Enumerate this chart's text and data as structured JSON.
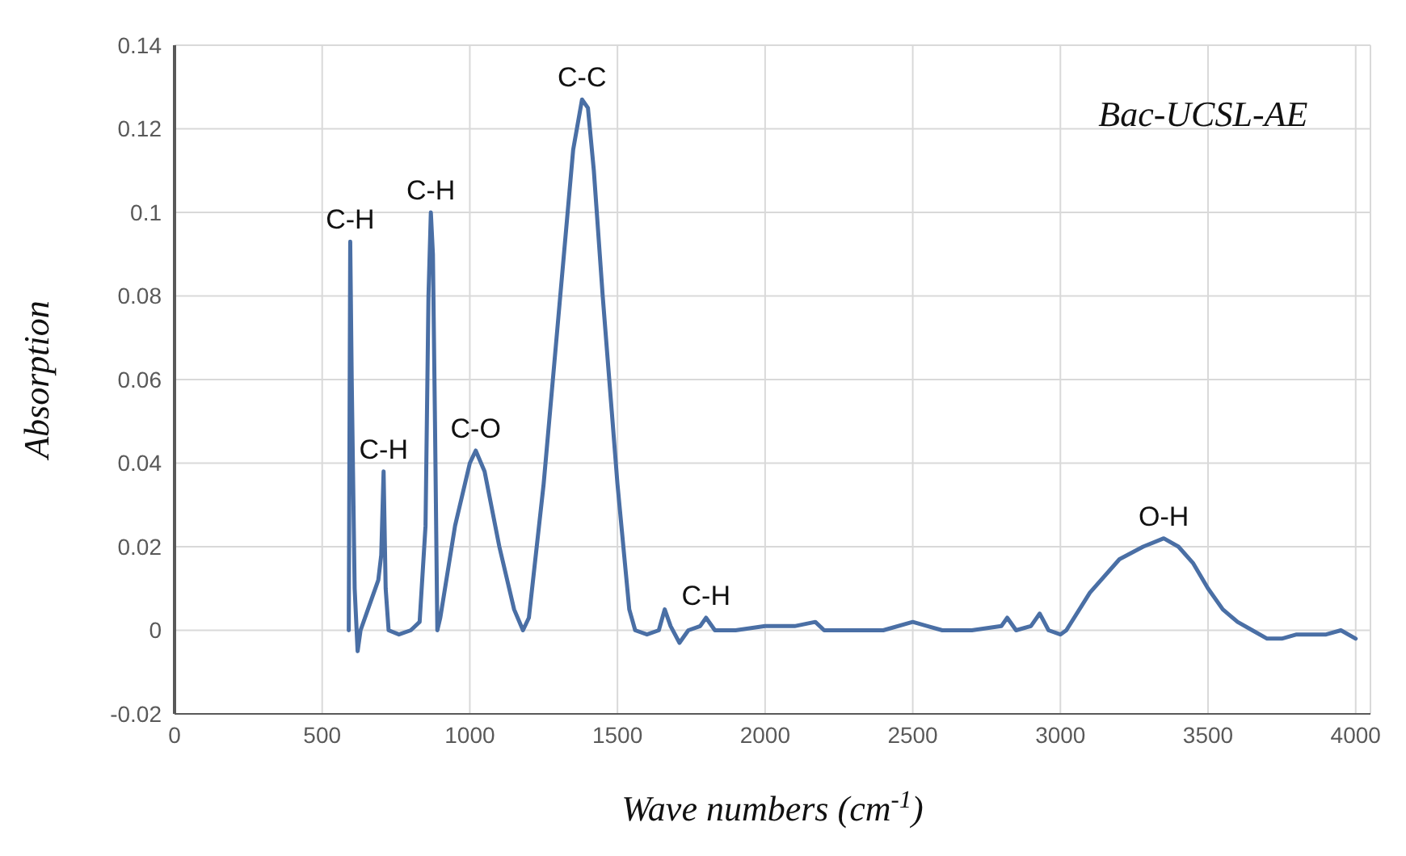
{
  "chart_data": {
    "type": "line",
    "title": "Bac-UCSL-AE",
    "xlabel": "Wave numbers (cm$^{-1}$)",
    "ylabel": "Absorption",
    "x": [
      590,
      595,
      600,
      610,
      620,
      630,
      660,
      690,
      700,
      708,
      715,
      725,
      760,
      800,
      830,
      850,
      860,
      868,
      875,
      882,
      890,
      900,
      950,
      1000,
      1020,
      1050,
      1100,
      1150,
      1180,
      1200,
      1250,
      1300,
      1350,
      1380,
      1400,
      1420,
      1450,
      1500,
      1540,
      1560,
      1600,
      1640,
      1660,
      1680,
      1710,
      1740,
      1780,
      1800,
      1830,
      1900,
      2000,
      2100,
      2170,
      2200,
      2300,
      2400,
      2500,
      2550,
      2600,
      2700,
      2800,
      2820,
      2850,
      2900,
      2930,
      2960,
      3000,
      3020,
      3100,
      3200,
      3280,
      3350,
      3400,
      3450,
      3500,
      3550,
      3600,
      3650,
      3700,
      3750,
      3800,
      3900,
      3950,
      4000
    ],
    "series": [
      {
        "color": "#4a6fa5",
        "values": [
          0.0,
          0.093,
          0.06,
          0.01,
          -0.005,
          0.0,
          0.006,
          0.012,
          0.018,
          0.038,
          0.01,
          0.0,
          -0.001,
          0.0,
          0.002,
          0.025,
          0.08,
          0.1,
          0.09,
          0.05,
          0.0,
          0.003,
          0.025,
          0.04,
          0.043,
          0.038,
          0.02,
          0.005,
          0.0,
          0.003,
          0.035,
          0.075,
          0.115,
          0.127,
          0.125,
          0.11,
          0.08,
          0.035,
          0.005,
          0.0,
          -0.001,
          0.0,
          0.005,
          0.001,
          -0.003,
          0.0,
          0.001,
          0.003,
          0.0,
          0.0,
          0.001,
          0.001,
          0.002,
          0.0,
          0.0,
          0.0,
          0.002,
          0.001,
          0.0,
          0.0,
          0.001,
          0.003,
          0.0,
          0.001,
          0.004,
          0.0,
          -0.001,
          0.0,
          0.009,
          0.017,
          0.02,
          0.022,
          0.02,
          0.016,
          0.01,
          0.005,
          0.002,
          0.0,
          -0.002,
          -0.002,
          -0.001,
          -0.001,
          0.0,
          -0.002
        ]
      }
    ],
    "xlim": [
      0,
      4050
    ],
    "xticks": [
      0,
      500,
      1000,
      1500,
      2000,
      2500,
      3000,
      3500,
      4000
    ],
    "ylim": [
      -0.02,
      0.14
    ],
    "yticks": [
      -0.02,
      0,
      0.02,
      0.04,
      0.06,
      0.08,
      0.1,
      0.12,
      0.14
    ],
    "grid": true,
    "marker": "none",
    "line_style": "solid",
    "annotations": [
      {
        "text": "C-H",
        "x": 595,
        "y": 0.093
      },
      {
        "text": "C-H",
        "x": 708,
        "y": 0.038
      },
      {
        "text": "C-H",
        "x": 868,
        "y": 0.1
      },
      {
        "text": "C-O",
        "x": 1020,
        "y": 0.043
      },
      {
        "text": "C-C",
        "x": 1380,
        "y": 0.127
      },
      {
        "text": "C-H",
        "x": 1800,
        "y": 0.003
      },
      {
        "text": "O-H",
        "x": 3350,
        "y": 0.022
      }
    ]
  }
}
